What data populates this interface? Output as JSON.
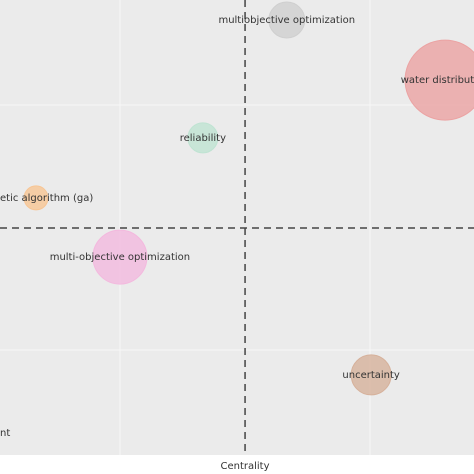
{
  "chart_data": {
    "type": "scatter",
    "xlabel": "Centrality",
    "xlim": [
      0,
      100
    ],
    "ylim": [
      0,
      100
    ],
    "x_divider": 51.7,
    "y_divider": 49.9,
    "series": [
      {
        "name": "multiobjective optimization",
        "color": "#cfcfcf",
        "x": [
          60.5
        ],
        "values": [
          95.6
        ],
        "sizes": [
          18
        ]
      },
      {
        "name": "water distribution",
        "color": "#eba3a3",
        "x": [
          93.9
        ],
        "values": [
          82.4
        ],
        "sizes": [
          40
        ]
      },
      {
        "name": "reliability",
        "color": "#bfe3d2",
        "x": [
          42.8
        ],
        "values": [
          69.7
        ],
        "sizes": [
          15
        ]
      },
      {
        "name": "etic algorithm (ga)",
        "color": "#f7c594",
        "x": [
          7.6
        ],
        "values": [
          56.5
        ],
        "sizes": [
          12
        ]
      },
      {
        "name": "multi-objective optimization",
        "color": "#f3b9de",
        "x": [
          25.3
        ],
        "values": [
          43.5
        ],
        "sizes": [
          27
        ]
      },
      {
        "name": "uncertainty",
        "color": "#d6b19b",
        "x": [
          78.3
        ],
        "values": [
          17.6
        ],
        "sizes": [
          20
        ]
      }
    ],
    "annotations": [
      "nt"
    ]
  }
}
